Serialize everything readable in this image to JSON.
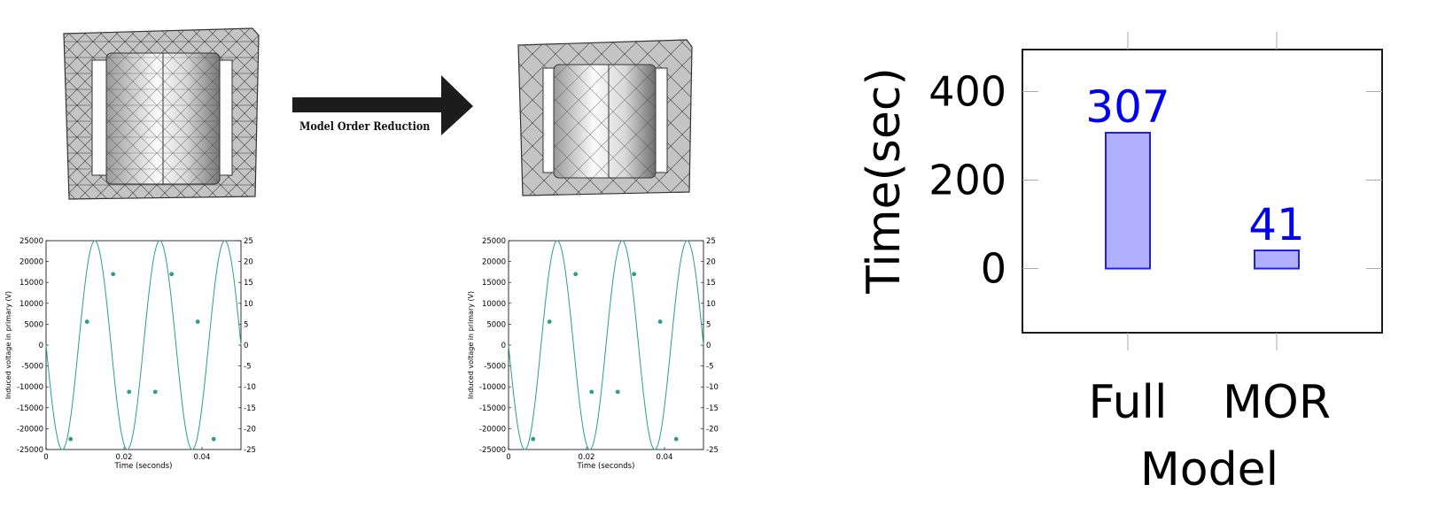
{
  "arrow": {
    "label": "Model Order Reduction"
  },
  "colors": {
    "mesh_fill": "#c4c4c4",
    "mesh_line": "#3a3a3a",
    "wave": "#2a9d8f",
    "bar_fill": "#b0b0ff",
    "bar_edge": "#2020dd",
    "bar_label": "#0000ee"
  },
  "chart_data": [
    {
      "type": "line",
      "panel": "full",
      "title": "",
      "xlabel": "Time (seconds)",
      "ylabel": "Induced voltage in primary (V)",
      "xlim": [
        0,
        0.05
      ],
      "ylim": [
        -25000,
        25000
      ],
      "y2lim": [
        -25,
        25
      ],
      "xticks": [
        "0",
        "0.02",
        "0.04"
      ],
      "xtick_values": [
        0,
        0.02,
        0.04
      ],
      "yticks": [
        "25000",
        "20000",
        "15000",
        "10000",
        "5000",
        "0",
        "-5000",
        "-10000",
        "-15000",
        "-20000",
        "-25000"
      ],
      "ytick_values": [
        25000,
        20000,
        15000,
        10000,
        5000,
        0,
        -5000,
        -10000,
        -15000,
        -20000,
        -25000
      ],
      "y2ticks": [
        "25",
        "20",
        "15",
        "10",
        "5",
        "0",
        "-5",
        "-10",
        "-15",
        "-20",
        "-25"
      ],
      "series": [
        {
          "amplitude": 25000,
          "frequency_hz": 60,
          "markers": {
            "x": [
              0.0063,
              0.0105,
              0.0172,
              0.0213,
              0.028,
              0.0322,
              0.0389,
              0.043
            ],
            "y": [
              -22500,
              5600,
              17000,
              -11200,
              -11200,
              17000,
              5600,
              -22500
            ]
          }
        }
      ]
    },
    {
      "type": "line",
      "panel": "mor",
      "title": "",
      "xlabel": "Time (seconds)",
      "ylabel": "Induced voltage in primary (V)",
      "xlim": [
        0,
        0.05
      ],
      "ylim": [
        -25000,
        25000
      ],
      "y2lim": [
        -25,
        25
      ],
      "xticks": [
        "0",
        "0.02",
        "0.04"
      ],
      "xtick_values": [
        0,
        0.02,
        0.04
      ],
      "yticks": [
        "25000",
        "20000",
        "15000",
        "10000",
        "5000",
        "0",
        "-5000",
        "-10000",
        "-15000",
        "-20000",
        "-25000"
      ],
      "ytick_values": [
        25000,
        20000,
        15000,
        10000,
        5000,
        0,
        -5000,
        -10000,
        -15000,
        -20000,
        -25000
      ],
      "y2ticks": [
        "25",
        "20",
        "15",
        "10",
        "5",
        "0",
        "-5",
        "-10",
        "-15",
        "-20",
        "-25"
      ],
      "series": [
        {
          "amplitude": 25000,
          "frequency_hz": 60,
          "markers": {
            "x": [
              0.0063,
              0.0105,
              0.0172,
              0.0213,
              0.028,
              0.0322,
              0.0389,
              0.043
            ],
            "y": [
              -22500,
              5600,
              17000,
              -11200,
              -11200,
              17000,
              5600,
              -22500
            ]
          }
        }
      ]
    },
    {
      "type": "bar",
      "title": "",
      "categories": [
        "Full",
        "MOR"
      ],
      "values": [
        307,
        41
      ],
      "data_labels": [
        "307",
        "41"
      ],
      "xlabel": "Model",
      "ylabel": "Time(sec)",
      "ylim": [
        -145,
        495
      ],
      "yticks": [
        "400",
        "200",
        "0"
      ],
      "ytick_values": [
        400,
        200,
        0
      ],
      "grid": false
    }
  ]
}
